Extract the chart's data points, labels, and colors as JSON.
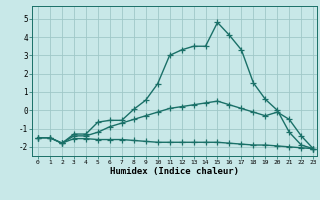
{
  "xlabel": "Humidex (Indice chaleur)",
  "xlim": [
    -0.5,
    23.3
  ],
  "ylim": [
    -2.5,
    5.7
  ],
  "xticks": [
    0,
    1,
    2,
    3,
    4,
    5,
    6,
    7,
    8,
    9,
    10,
    11,
    12,
    13,
    14,
    15,
    16,
    17,
    18,
    19,
    20,
    21,
    22,
    23
  ],
  "yticks": [
    -2,
    -1,
    0,
    1,
    2,
    3,
    4,
    5
  ],
  "bg_color": "#c8e8e8",
  "grid_color": "#a0c8c8",
  "line_color": "#1a7068",
  "line1_x": [
    0,
    1,
    2,
    3,
    4,
    5,
    6,
    7,
    8,
    9,
    10,
    11,
    12,
    13,
    14,
    15,
    16,
    17,
    18,
    19,
    20,
    21,
    22,
    23
  ],
  "line1_y": [
    -1.5,
    -1.5,
    -1.8,
    -1.3,
    -1.3,
    -0.65,
    -0.55,
    -0.55,
    0.05,
    0.55,
    1.45,
    3.0,
    3.3,
    3.5,
    3.5,
    4.8,
    4.1,
    3.3,
    1.5,
    0.6,
    0.0,
    -1.2,
    -1.9,
    -2.1
  ],
  "line2_x": [
    0,
    1,
    2,
    3,
    4,
    5,
    6,
    7,
    8,
    9,
    10,
    11,
    12,
    13,
    14,
    15,
    16,
    17,
    18,
    19,
    20,
    21,
    22,
    23
  ],
  "line2_y": [
    -1.5,
    -1.5,
    -1.8,
    -1.4,
    -1.4,
    -1.2,
    -0.9,
    -0.7,
    -0.5,
    -0.3,
    -0.1,
    0.1,
    0.2,
    0.3,
    0.4,
    0.5,
    0.3,
    0.1,
    -0.1,
    -0.3,
    -0.1,
    -0.5,
    -1.4,
    -2.1
  ],
  "line3_x": [
    0,
    1,
    2,
    3,
    4,
    5,
    6,
    7,
    8,
    9,
    10,
    11,
    12,
    13,
    14,
    15,
    16,
    17,
    18,
    19,
    20,
    21,
    22,
    23
  ],
  "line3_y": [
    -1.5,
    -1.5,
    -1.8,
    -1.55,
    -1.55,
    -1.6,
    -1.6,
    -1.6,
    -1.65,
    -1.7,
    -1.75,
    -1.75,
    -1.75,
    -1.75,
    -1.75,
    -1.75,
    -1.8,
    -1.85,
    -1.9,
    -1.9,
    -1.95,
    -2.0,
    -2.05,
    -2.1
  ],
  "marker": "+",
  "markersize": 4,
  "linewidth": 1.0
}
